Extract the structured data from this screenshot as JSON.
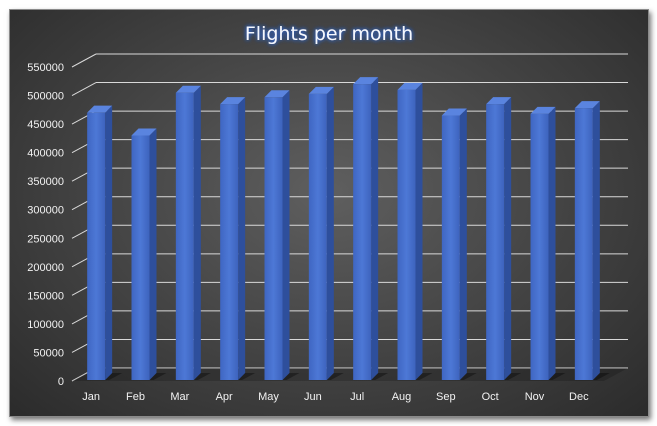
{
  "chart_data": {
    "type": "bar",
    "title": "Flights per month",
    "categories": [
      "Jan",
      "Feb",
      "Mar",
      "Apr",
      "May",
      "Jun",
      "Jul",
      "Aug",
      "Sep",
      "Oct",
      "Nov",
      "Dec"
    ],
    "values": [
      470000,
      430000,
      505000,
      485000,
      497000,
      503000,
      520000,
      510000,
      465000,
      485000,
      468000,
      478000
    ],
    "ylim": [
      0,
      550000
    ],
    "yticks": [
      0,
      50000,
      100000,
      150000,
      200000,
      250000,
      300000,
      350000,
      400000,
      450000,
      500000,
      550000
    ],
    "grid": true,
    "bar_color": "#4a72c9",
    "background_color": "#454545"
  }
}
